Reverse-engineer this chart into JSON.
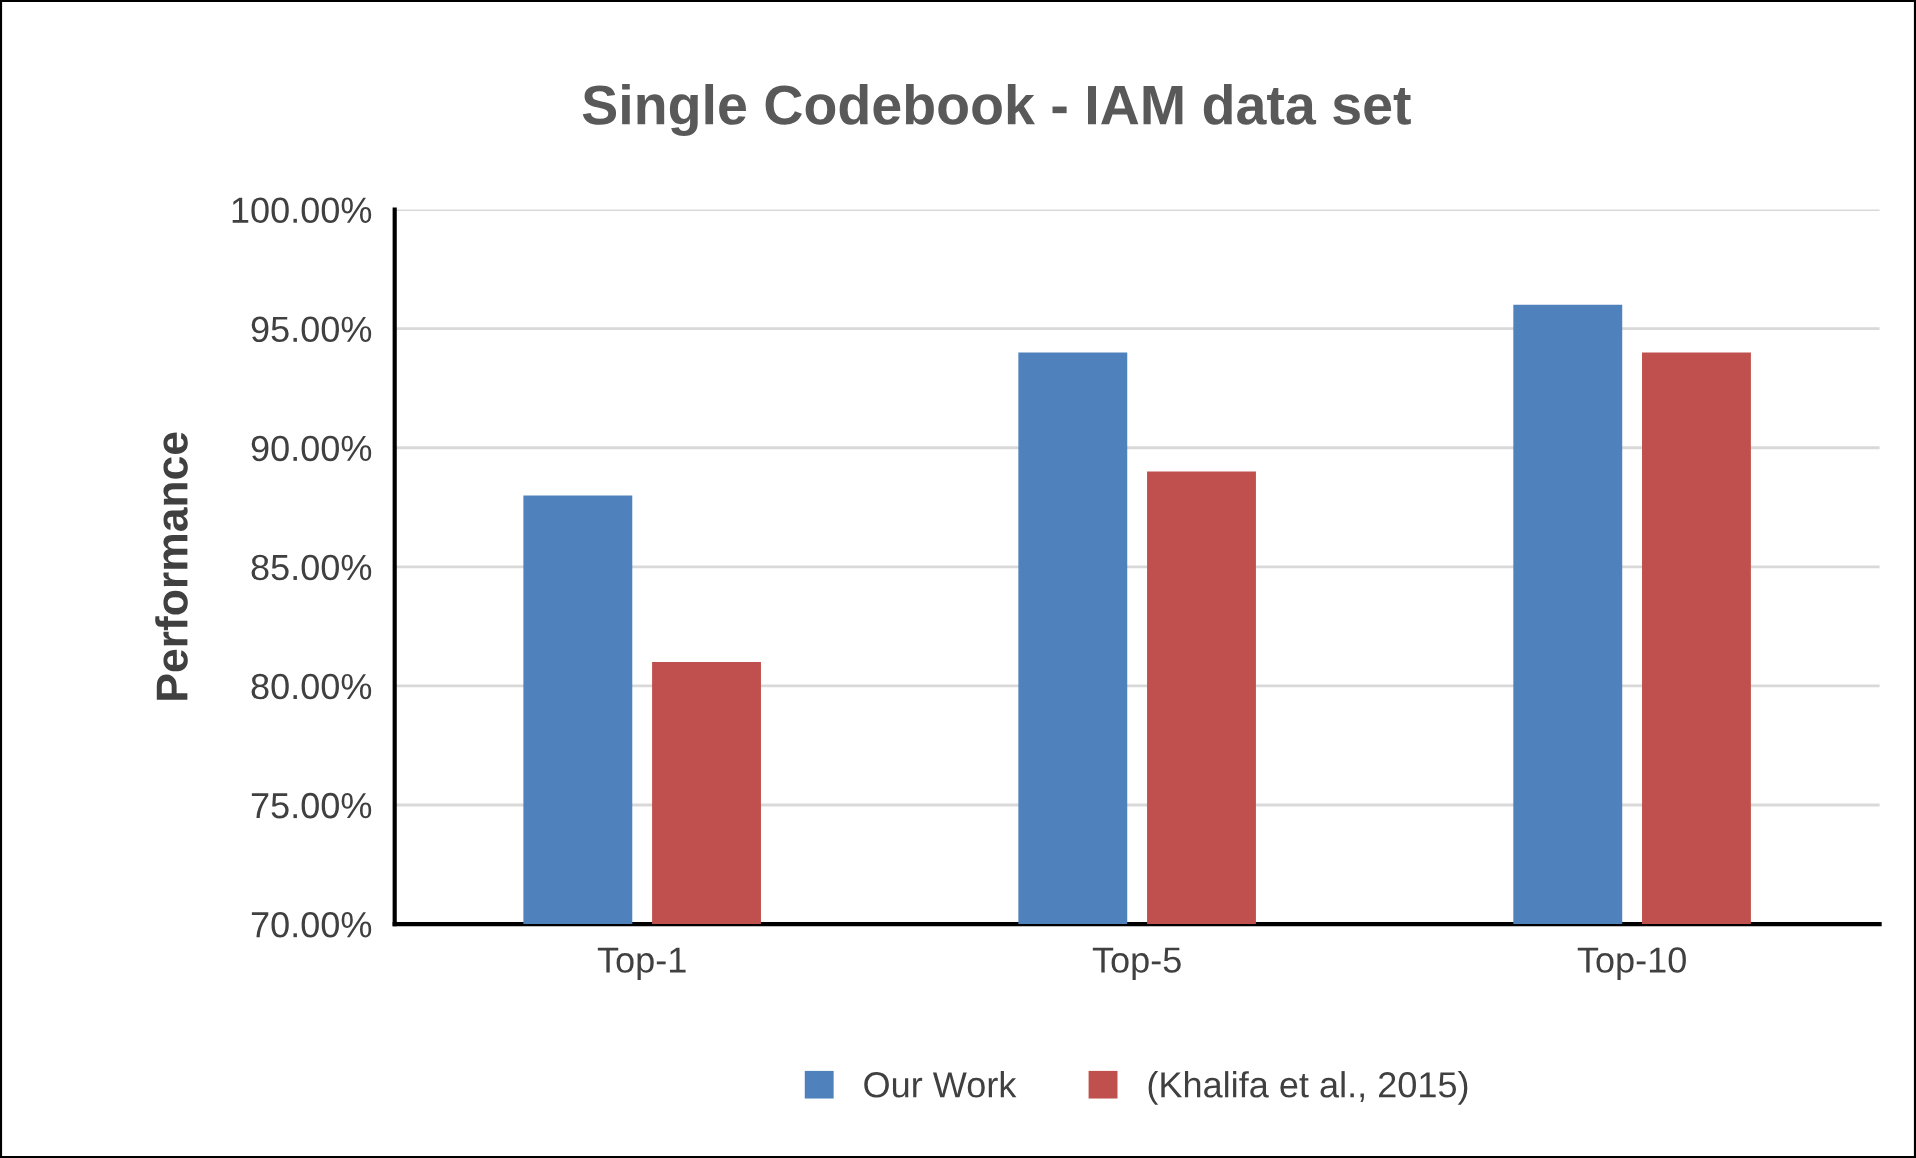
{
  "chart_data": {
    "type": "bar",
    "title": "Single Codebook - IAM data set",
    "ylabel": "Performance",
    "categories": [
      "Top-1",
      "Top-5",
      "Top-10"
    ],
    "series": [
      {
        "name": "Our Work",
        "color": "#4f81bd",
        "values": [
          88,
          94,
          96
        ]
      },
      {
        "name": "(Khalifa et al., 2015)",
        "color": "#c0504d",
        "values": [
          81,
          89,
          94
        ]
      }
    ],
    "ylim": [
      70,
      100
    ],
    "yticks": [
      {
        "value": 70,
        "label": "70.00%"
      },
      {
        "value": 75,
        "label": "75.00%"
      },
      {
        "value": 80,
        "label": "80.00%"
      },
      {
        "value": 85,
        "label": "85.00%"
      },
      {
        "value": 90,
        "label": "90.00%"
      },
      {
        "value": 95,
        "label": "95.00%"
      },
      {
        "value": 100,
        "label": "100.00%"
      }
    ],
    "grid": "y",
    "legend": "bottom"
  }
}
